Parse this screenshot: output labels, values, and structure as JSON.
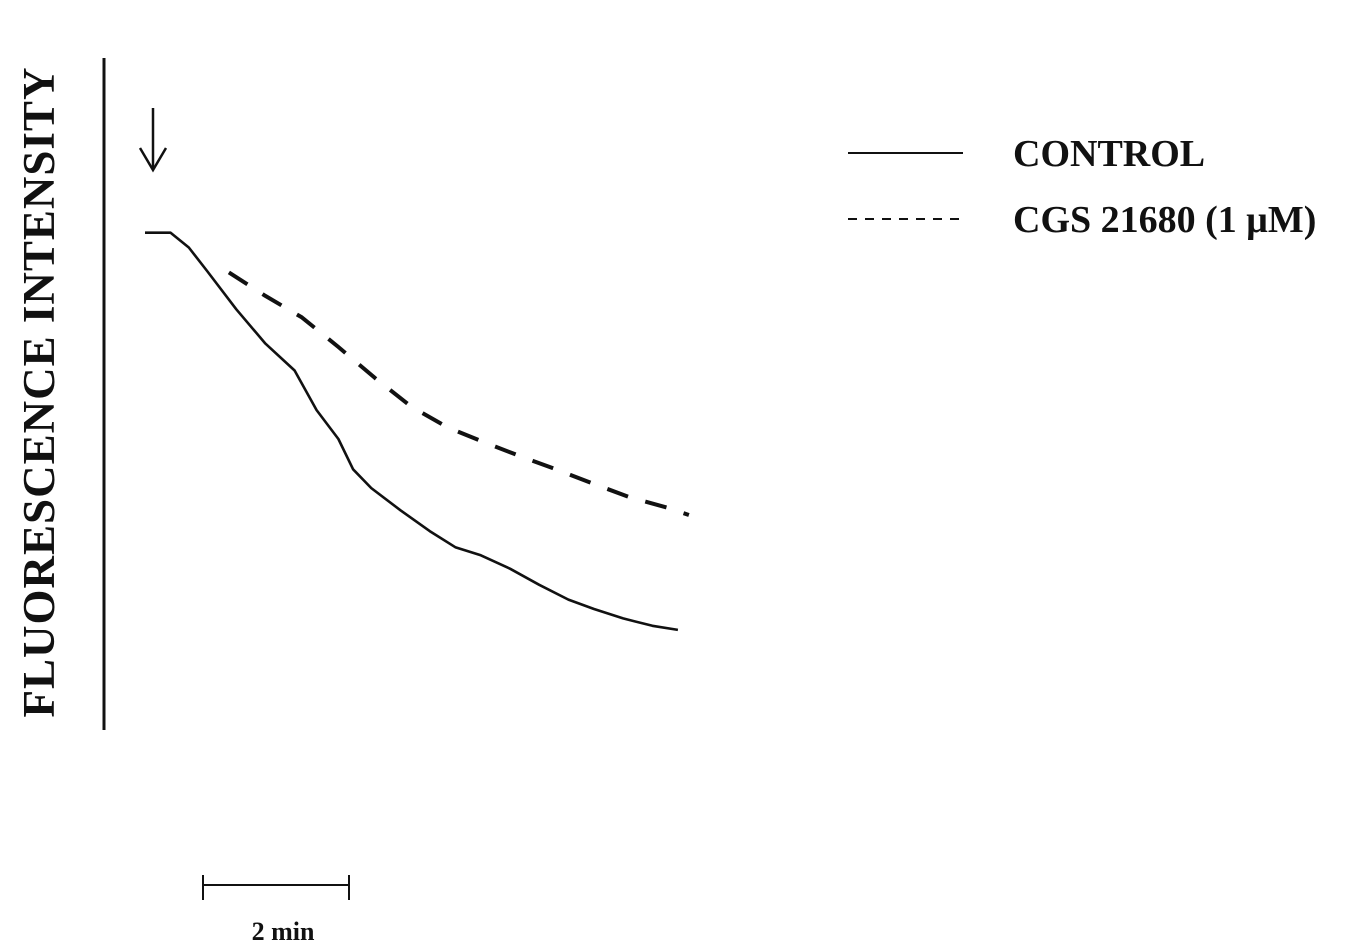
{
  "chart_data": {
    "type": "line",
    "title": "",
    "xlabel": "",
    "ylabel": "FLUORESCENCE INTENSITY",
    "xlim": [
      0,
      15.4
    ],
    "ylim": [
      0,
      100
    ],
    "grid": false,
    "legend": {
      "position": "top-right",
      "entries": [
        {
          "label": "CONTROL",
          "style": "solid"
        },
        {
          "label": "CGS 21680 (1 μM)",
          "style": "dashed"
        }
      ]
    },
    "series": [
      {
        "name": "CONTROL",
        "style": "solid",
        "color": "#111111",
        "x": [
          0,
          0.7,
          1.2,
          1.7,
          2.5,
          3.3,
          4.1,
          4.7,
          5.3,
          5.7,
          6.2,
          7.0,
          7.8,
          8.5,
          9.2,
          10.0,
          10.8,
          11.6,
          12.3,
          13.1,
          13.9,
          14.6
        ],
        "y": [
          74.0,
          74.0,
          71.8,
          68.3,
          62.6,
          57.5,
          53.5,
          47.6,
          43.3,
          38.8,
          36.0,
          32.7,
          29.6,
          27.2,
          26.0,
          24.0,
          21.6,
          19.4,
          18.0,
          16.6,
          15.5,
          14.9
        ]
      },
      {
        "name": "CGS 21680 (1 μM)",
        "style": "dashed",
        "color": "#111111",
        "x": [
          2.3,
          3.3,
          4.3,
          5.3,
          6.3,
          7.3,
          8.3,
          9.3,
          10.3,
          11.3,
          12.3,
          13.3,
          14.3,
          14.9
        ],
        "y": [
          68.1,
          64.6,
          61.4,
          57.0,
          52.4,
          48.1,
          45.0,
          42.8,
          40.7,
          38.7,
          36.6,
          34.6,
          33.1,
          32.0
        ]
      }
    ],
    "annotations": [
      {
        "type": "arrow-down",
        "x": 0.15,
        "meaning": "addition"
      }
    ],
    "scale_bar": {
      "label": "2 min",
      "length": 4
    }
  }
}
